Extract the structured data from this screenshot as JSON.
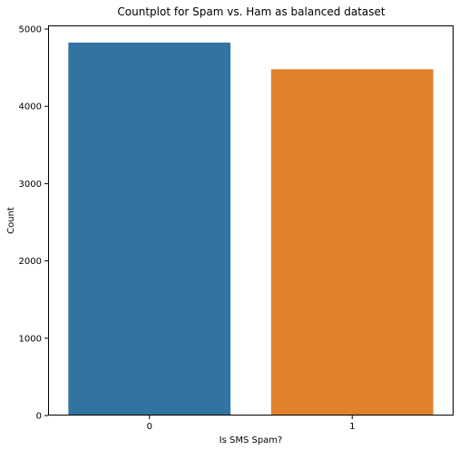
{
  "chart_data": {
    "type": "bar",
    "title": "Countplot for Spam vs. Ham as balanced dataset",
    "xlabel": "Is SMS Spam?",
    "ylabel": "Count",
    "categories": [
      "0",
      "1"
    ],
    "values": [
      4825,
      4480
    ],
    "ylim": [
      0,
      5047
    ],
    "yticks": [
      0,
      1000,
      2000,
      3000,
      4000,
      5000
    ],
    "grid": false,
    "colors": [
      "#3274a1",
      "#e1812c"
    ]
  }
}
